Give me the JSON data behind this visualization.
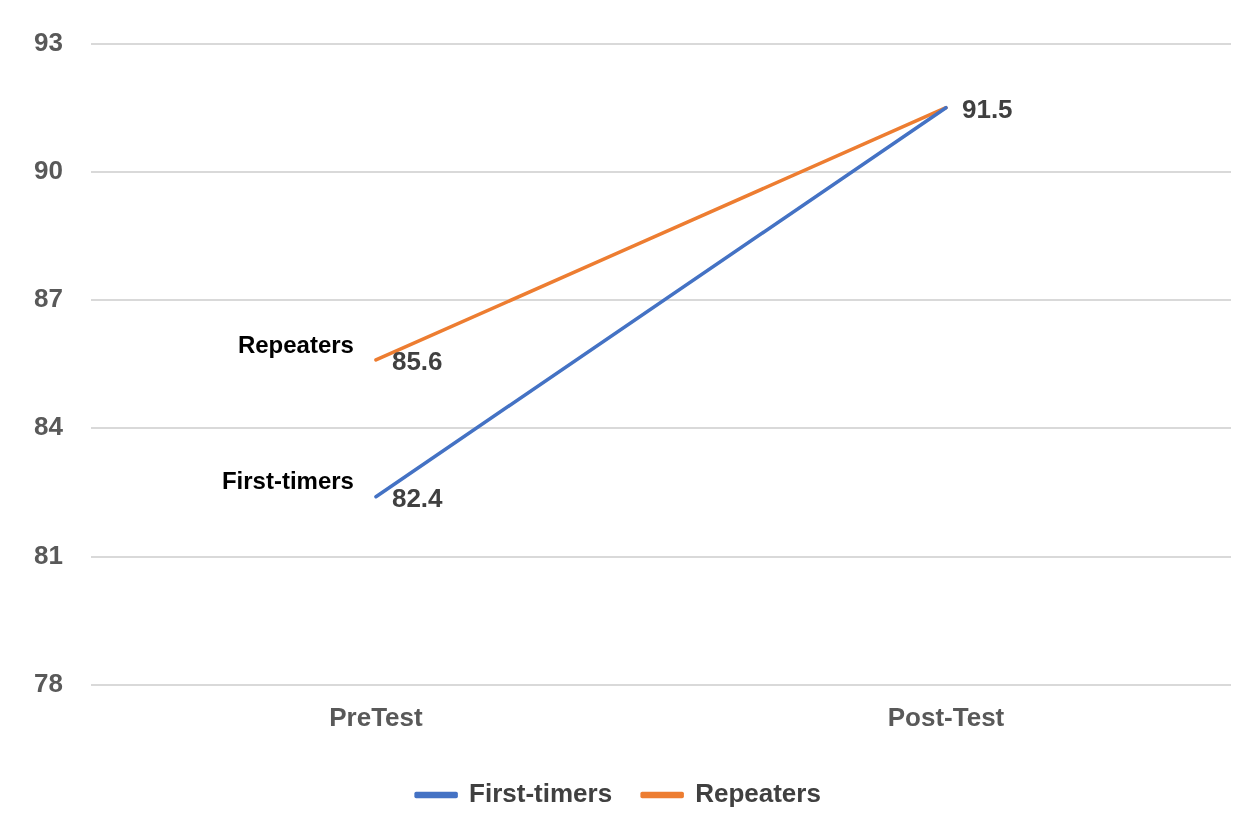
{
  "chart_data": {
    "type": "line",
    "categories": [
      "PreTest",
      "Post-Test"
    ],
    "series": [
      {
        "name": "First-timers",
        "color": "#4472c4",
        "values": [
          82.4,
          91.5
        ],
        "value_labels": [
          "82.4",
          null
        ]
      },
      {
        "name": "Repeaters",
        "color": "#ed7d31",
        "values": [
          85.6,
          91.5
        ],
        "value_labels": [
          "85.6",
          "91.5"
        ]
      }
    ],
    "ylim": [
      78,
      93
    ],
    "yticks": [
      78,
      81,
      84,
      87,
      90,
      93
    ],
    "grid": "y",
    "legend": "bottom",
    "marker": "none",
    "line_style": "solid"
  }
}
